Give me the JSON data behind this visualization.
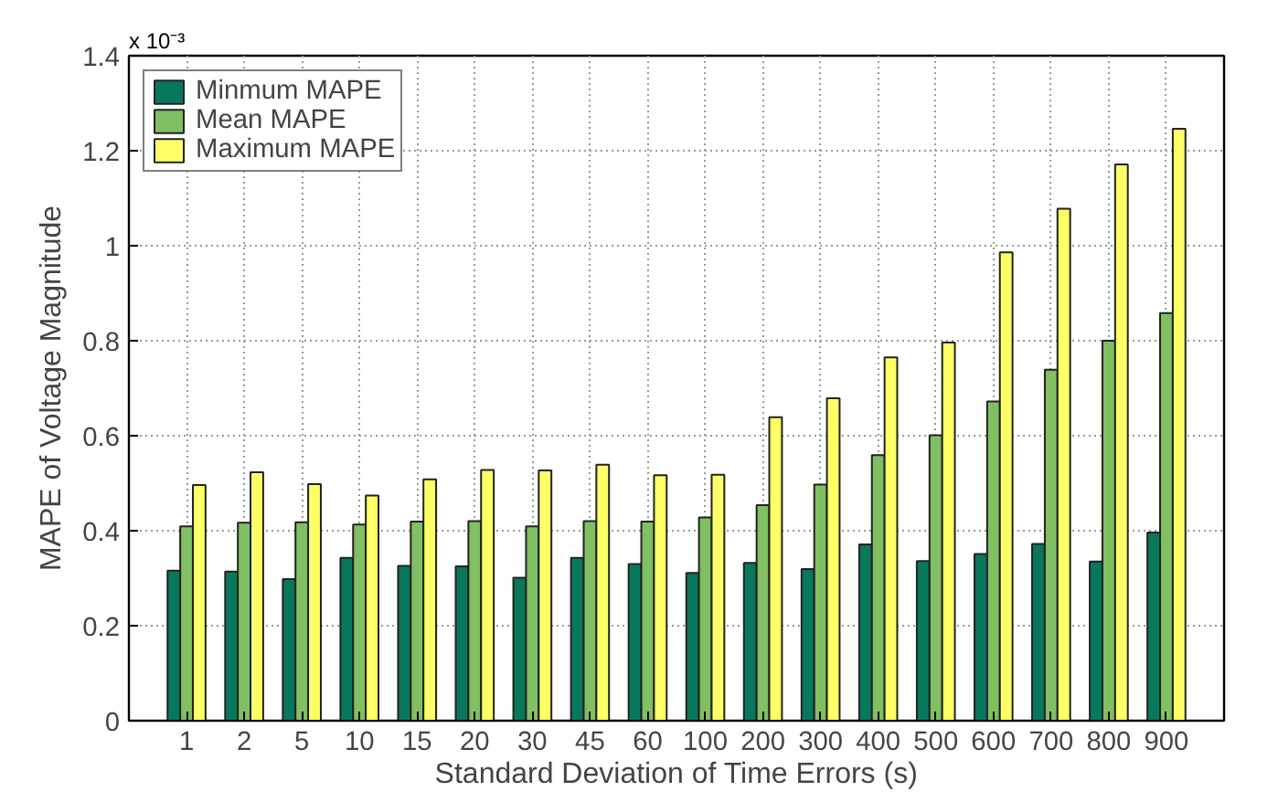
{
  "chart_data": {
    "type": "bar",
    "xlabel": "Standard Deviation of Time Errors (s)",
    "ylabel": "MAPE of Voltage Magnitude",
    "annotations": [
      "x 10⁻³"
    ],
    "categories": [
      "1",
      "2",
      "5",
      "10",
      "15",
      "20",
      "30",
      "45",
      "60",
      "100",
      "200",
      "300",
      "400",
      "500",
      "600",
      "700",
      "800",
      "900"
    ],
    "series": [
      {
        "name": "Minmum MAPE",
        "color": "#08785c",
        "values": [
          0.316,
          0.314,
          0.298,
          0.343,
          0.326,
          0.325,
          0.301,
          0.343,
          0.33,
          0.311,
          0.332,
          0.319,
          0.371,
          0.336,
          0.351,
          0.372,
          0.335,
          0.396
        ]
      },
      {
        "name": "Mean MAPE",
        "color": "#80bf62",
        "values": [
          0.409,
          0.417,
          0.418,
          0.413,
          0.419,
          0.42,
          0.409,
          0.42,
          0.419,
          0.428,
          0.454,
          0.497,
          0.559,
          0.601,
          0.672,
          0.739,
          0.8,
          0.858
        ]
      },
      {
        "name": "Maximum MAPE",
        "color": "#ffff66",
        "values": [
          0.496,
          0.523,
          0.498,
          0.474,
          0.508,
          0.528,
          0.527,
          0.539,
          0.517,
          0.518,
          0.639,
          0.679,
          0.765,
          0.796,
          0.986,
          1.078,
          1.171,
          1.246
        ]
      }
    ],
    "ylim": [
      0,
      1.4
    ],
    "yticks": [
      0,
      0.2,
      0.4,
      0.6,
      0.8,
      1,
      1.2,
      1.4
    ],
    "grid": true,
    "legend": "top left"
  }
}
